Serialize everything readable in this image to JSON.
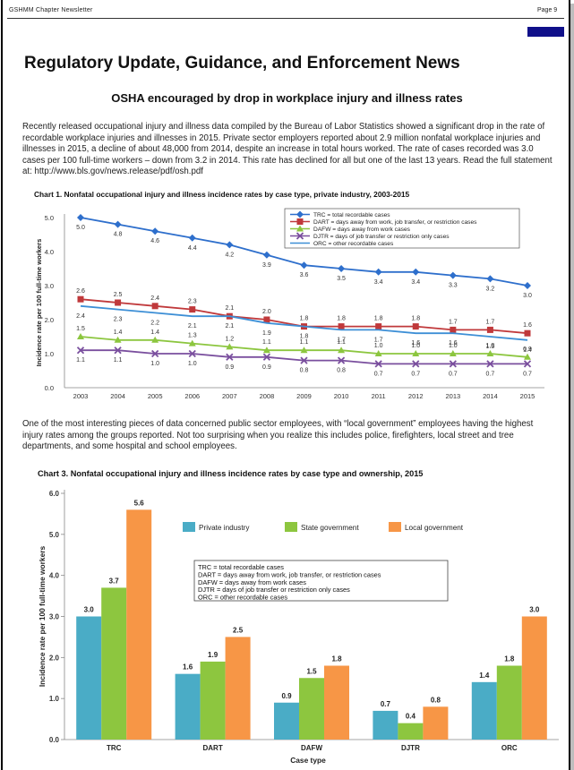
{
  "header": {
    "left": "GSHMM Chapter Newsletter",
    "right": "Page 9"
  },
  "title": "Regulatory Update, Guidance, and Enforcement News",
  "subtitle": "OSHA encouraged by drop in workplace injury and illness rates",
  "para1": "Recently released occupational injury and illness data compiled by the Bureau of Labor Statistics showed a significant drop in the rate of recordable workplace injuries and illnesses in 2015. Private sector employers reported about 2.9 million nonfatal workplace injuries and illnesses in 2015, a decline of about 48,000 from 2014, despite an increase in total hours worked.  The rate of cases recorded was 3.0 cases per 100 full-time workers – down from 3.2 in 2014. This rate has declined for all but one of the last 13 years.  Read the full statement at:  http://www.bls.gov/news.release/pdf/osh.pdf",
  "para2": "One of the most interesting pieces of data concerned public sector employees, with “local government” employees having the highest injury rates among the groups reported.  Not too surprising when you realize this includes police, firefighters, local street and tree departments, and some hospital and school employees.",
  "colors": {
    "trc": "#2e6fcc",
    "dart": "#c0393b",
    "dafw": "#8cc63f",
    "djtr": "#7a4f9e",
    "orc": "#3d8fd6",
    "private": "#4aacc6",
    "state": "#8dc63f",
    "local": "#f79646"
  },
  "chart_data": [
    {
      "type": "line",
      "title": "Chart 1. Nonfatal occupational injury and illness incidence rates by case type, private industry, 2003-2015",
      "xlabel": "",
      "ylabel": "Incidence rate per 100 full-time workers",
      "ylim": [
        0,
        5
      ],
      "yticks": [
        "0.0",
        "1.0",
        "2.0",
        "3.0",
        "4.0",
        "5.0"
      ],
      "grid": false,
      "legend_position": "top-right",
      "x": [
        "2003",
        "2004",
        "2005",
        "2006",
        "2007",
        "2008",
        "2009",
        "2010",
        "2011",
        "2012",
        "2013",
        "2014",
        "2015"
      ],
      "series": [
        {
          "name": "TRC = total recordable cases",
          "key": "trc",
          "marker": "diamond",
          "values": [
            5.0,
            4.8,
            4.6,
            4.4,
            4.2,
            3.9,
            3.6,
            3.5,
            3.4,
            3.4,
            3.3,
            3.2,
            3.0
          ]
        },
        {
          "name": "DART = days away from work, job transfer, or restriction cases",
          "key": "dart",
          "marker": "square",
          "values": [
            2.6,
            2.5,
            2.4,
            2.3,
            2.1,
            2.0,
            1.8,
            1.8,
            1.8,
            1.8,
            1.7,
            1.7,
            1.6
          ]
        },
        {
          "name": "DAFW = days away from work cases",
          "key": "dafw",
          "marker": "triangle",
          "values": [
            1.5,
            1.4,
            1.4,
            1.3,
            1.2,
            1.1,
            1.1,
            1.1,
            1.0,
            1.0,
            1.0,
            1.0,
            0.9
          ]
        },
        {
          "name": "DJTR = days of job transfer or restriction only cases",
          "key": "djtr",
          "marker": "x",
          "values": [
            1.1,
            1.1,
            1.0,
            1.0,
            0.9,
            0.9,
            0.8,
            0.8,
            0.7,
            0.7,
            0.7,
            0.7,
            0.7
          ]
        },
        {
          "name": "ORC = other recordable cases",
          "key": "orc",
          "marker": "none",
          "values": [
            2.4,
            2.3,
            2.2,
            2.1,
            2.1,
            1.9,
            1.8,
            1.7,
            1.7,
            1.6,
            1.6,
            1.5,
            1.4
          ]
        }
      ]
    },
    {
      "type": "bar",
      "title": "Chart 3. Nonfatal occupational injury and illness incidence rates by case type and ownership, 2015",
      "xlabel": "Case type",
      "ylabel": "Incidence rate per 100 full-time workers",
      "ylim": [
        0,
        6
      ],
      "yticks": [
        "0.0",
        "1.0",
        "2.0",
        "3.0",
        "4.0",
        "5.0",
        "6.0"
      ],
      "grid": false,
      "legend_position": "top-center",
      "categories": [
        "TRC",
        "DART",
        "DAFW",
        "DJTR",
        "ORC"
      ],
      "series": [
        {
          "name": "Private industry",
          "key": "private",
          "values": [
            3.0,
            1.6,
            0.9,
            0.7,
            1.4
          ]
        },
        {
          "name": "State government",
          "key": "state",
          "values": [
            3.7,
            1.9,
            1.5,
            0.4,
            1.8
          ]
        },
        {
          "name": "Local government",
          "key": "local",
          "values": [
            5.6,
            2.5,
            1.8,
            0.8,
            3.0
          ]
        }
      ],
      "notes": [
        "TRC = total recordable cases",
        "DART = days away from work, job transfer, or restriction cases",
        "DAFW = days away from work cases",
        "DJTR = days of job transfer or restriction only cases",
        "ORC = other recordable cases"
      ]
    }
  ]
}
